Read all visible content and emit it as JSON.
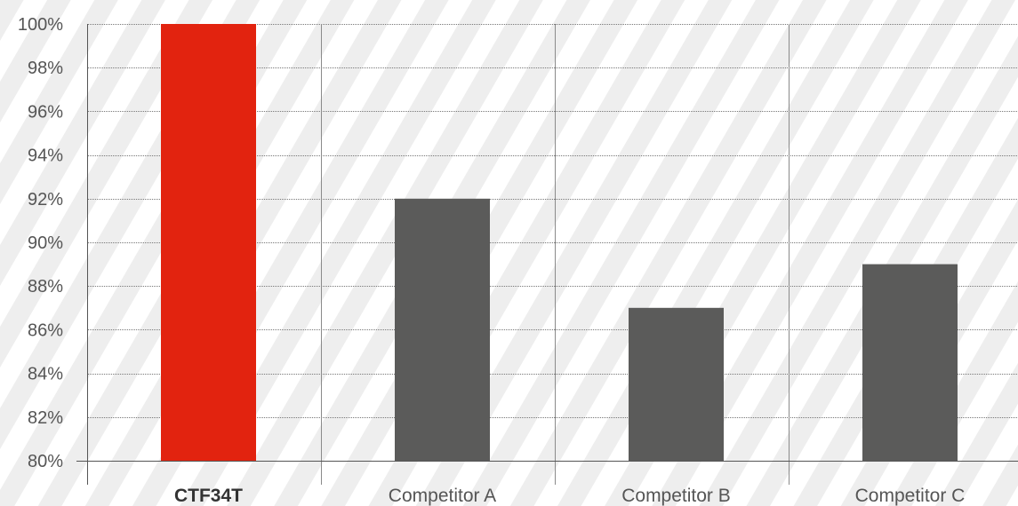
{
  "chart_data": {
    "type": "bar",
    "categories": [
      "CTF34T",
      "Competitor A",
      "Competitor B",
      "Competitor C"
    ],
    "values": [
      100,
      92,
      87,
      89
    ],
    "highlight_category": "CTF34T",
    "y_unit": "%",
    "ylim": [
      80,
      100
    ],
    "y_ticks": [
      80,
      82,
      84,
      86,
      88,
      90,
      92,
      94,
      96,
      98,
      100
    ],
    "y_tick_labels": [
      "80%",
      "82%",
      "84%",
      "86%",
      "88%",
      "90%",
      "92%",
      "94%",
      "96%",
      "98%",
      "100%"
    ],
    "grid": "horizontal dotted",
    "legend": "none",
    "title": "",
    "xlabel": "",
    "ylabel": "",
    "colors": {
      "highlight_bar": "#e2230f",
      "bar": "#5b5b5a",
      "background_stripe": "#eeeeee",
      "axis": "#555555",
      "gridline": "#777777"
    }
  }
}
